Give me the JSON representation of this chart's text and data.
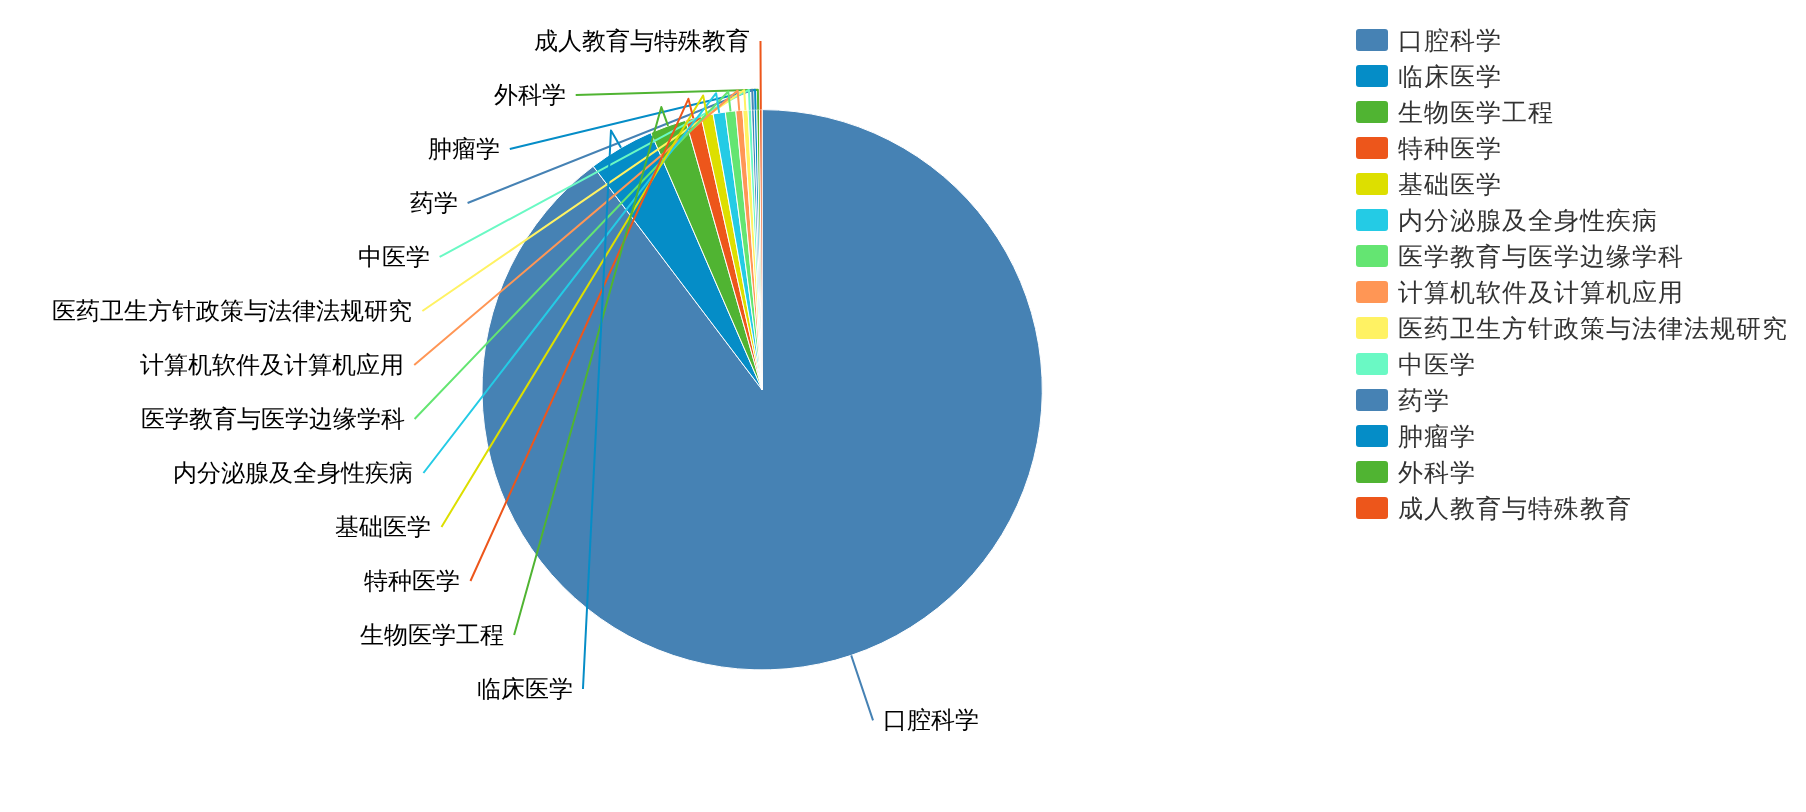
{
  "chart_data": {
    "type": "pie",
    "categories": [
      "口腔科学",
      "临床医学",
      "生物医学工程",
      "特种医学",
      "基础医学",
      "内分泌腺及全身性疾病",
      "医学教育与医学边缘学科",
      "计算机软件及计算机应用",
      "医药卫生方针政策与法律法规研究",
      "中医学",
      "药学",
      "肿瘤学",
      "外科学",
      "成人教育与特殊教育"
    ],
    "values": [
      89.7,
      3.8,
      2.1,
      0.9,
      0.7,
      0.7,
      0.6,
      0.4,
      0.3,
      0.2,
      0.15,
      0.15,
      0.15,
      0.15
    ],
    "colors": [
      "#4682b4",
      "#058dc7",
      "#50b432",
      "#ed561b",
      "#dddf00",
      "#24cbe5",
      "#64e572",
      "#ff9655",
      "#fff263",
      "#6af9c4",
      "#4682b4",
      "#058dc7",
      "#50b432",
      "#ed561b"
    ],
    "legend": "top right"
  }
}
